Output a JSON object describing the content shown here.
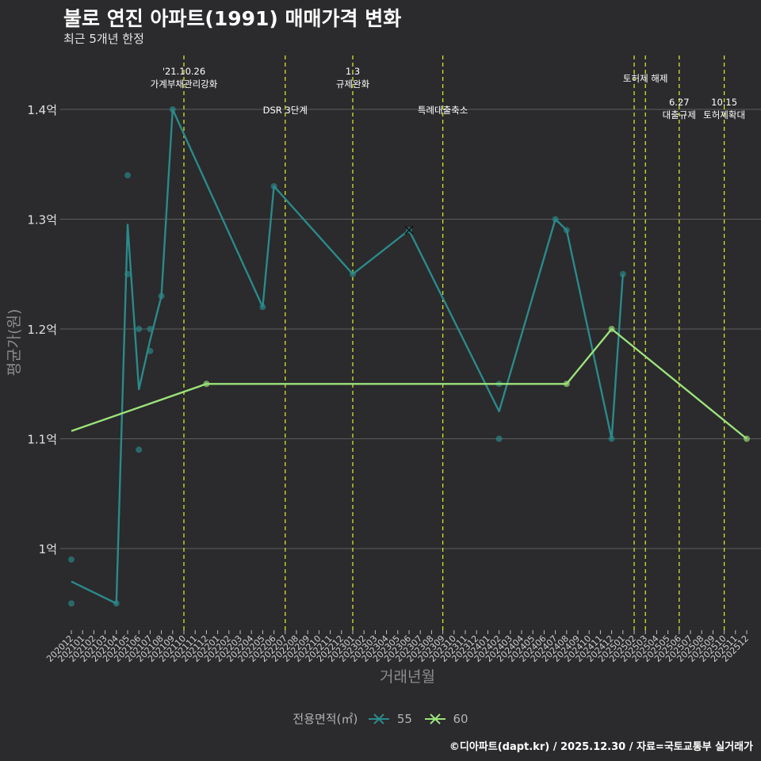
{
  "title": "불로 연진 아파트(1991) 매매가격 변화",
  "subtitle": "최근 5개년 한정",
  "caption": "©디아파트(dapt.kr) / 2025.12.30 / 자료=국토교통부 실거래가",
  "colors": {
    "background": "#2b2a2c",
    "series55": "#2a8a8a",
    "series60": "#9be27a",
    "event": "#d7e32e",
    "grid": "#5e5e5e"
  },
  "chart_data": {
    "type": "line",
    "xlabel": "거래년월",
    "ylabel": "평균가(원)",
    "categories": [
      "202012",
      "202101",
      "202102",
      "202103",
      "202104",
      "202105",
      "202106",
      "202107",
      "202108",
      "202109",
      "202110",
      "202111",
      "202112",
      "202201",
      "202202",
      "202203",
      "202204",
      "202205",
      "202206",
      "202207",
      "202208",
      "202209",
      "202210",
      "202211",
      "202212",
      "202301",
      "202302",
      "202303",
      "202304",
      "202305",
      "202306",
      "202307",
      "202308",
      "202309",
      "202310",
      "202311",
      "202312",
      "202401",
      "202402",
      "202403",
      "202404",
      "202405",
      "202406",
      "202407",
      "202408",
      "202409",
      "202410",
      "202411",
      "202412",
      "202501",
      "202502",
      "202503",
      "202504",
      "202505",
      "202506",
      "202507",
      "202508",
      "202509",
      "202510",
      "202511",
      "202512"
    ],
    "ylim": [
      0.93,
      1.45
    ],
    "yticks": [
      1.0,
      1.1,
      1.2,
      1.3,
      1.4
    ],
    "ytick_labels": [
      "1억",
      "1.1억",
      "1.2억",
      "1.3억",
      "1.4억"
    ],
    "legend_title": "전용면적(㎡)",
    "series": [
      {
        "name": "55",
        "line": [
          [
            "202012",
            0.97
          ],
          [
            "202104",
            0.95
          ],
          [
            "202105",
            1.295
          ],
          [
            "202106",
            1.145
          ],
          [
            "202107",
            1.19
          ],
          [
            "202108",
            1.23
          ],
          [
            "202109",
            1.4
          ],
          [
            "202205",
            1.22
          ],
          [
            "202206",
            1.33
          ],
          [
            "202301",
            1.25
          ],
          [
            "202306",
            1.29
          ],
          [
            "202402",
            1.125
          ],
          [
            "202407",
            1.3
          ],
          [
            "202408",
            1.29
          ],
          [
            "202412",
            1.1
          ],
          [
            "202501",
            1.25
          ]
        ],
        "points": [
          [
            "202012",
            0.99
          ],
          [
            "202012",
            0.95
          ],
          [
            "202104",
            0.95
          ],
          [
            "202105",
            1.34
          ],
          [
            "202105",
            1.25
          ],
          [
            "202106",
            1.2
          ],
          [
            "202106",
            1.09
          ],
          [
            "202107",
            1.2
          ],
          [
            "202107",
            1.18
          ],
          [
            "202108",
            1.23
          ],
          [
            "202109",
            1.4
          ],
          [
            "202205",
            1.22
          ],
          [
            "202206",
            1.33
          ],
          [
            "202301",
            1.25
          ],
          [
            "202306",
            1.29
          ],
          [
            "202402",
            1.15
          ],
          [
            "202402",
            1.1
          ],
          [
            "202407",
            1.3
          ],
          [
            "202408",
            1.29
          ],
          [
            "202412",
            1.1
          ],
          [
            "202501",
            1.25
          ]
        ]
      },
      {
        "name": "60",
        "line": [
          [
            "202012",
            1.107
          ],
          [
            "202112",
            1.15
          ],
          [
            "202408",
            1.15
          ],
          [
            "202412",
            1.2
          ],
          [
            "202512",
            1.1
          ]
        ],
        "points": [
          [
            "202112",
            1.15
          ],
          [
            "202408",
            1.15
          ],
          [
            "202412",
            1.2
          ],
          [
            "202512",
            1.1
          ]
        ]
      }
    ],
    "events": [
      {
        "at": "202110",
        "label": "'21.10.26\n가계부채관리강화",
        "tier": 1
      },
      {
        "at": "202207",
        "label": "DSR 3단계",
        "tier": 3
      },
      {
        "at": "202301",
        "label": "1.3\n규제완화",
        "tier": 1
      },
      {
        "at": "202309",
        "label": "특례대출축소",
        "tier": 3
      },
      {
        "at": "202502",
        "label": "",
        "tier": 0
      },
      {
        "at": "202503",
        "label": "토허제 해제",
        "tier": 2
      },
      {
        "at": "202506",
        "label": "6.27\n대출규제",
        "tier": 4
      },
      {
        "at": "202510",
        "label": "10.15\n토허제확대",
        "tier": 4
      }
    ]
  }
}
